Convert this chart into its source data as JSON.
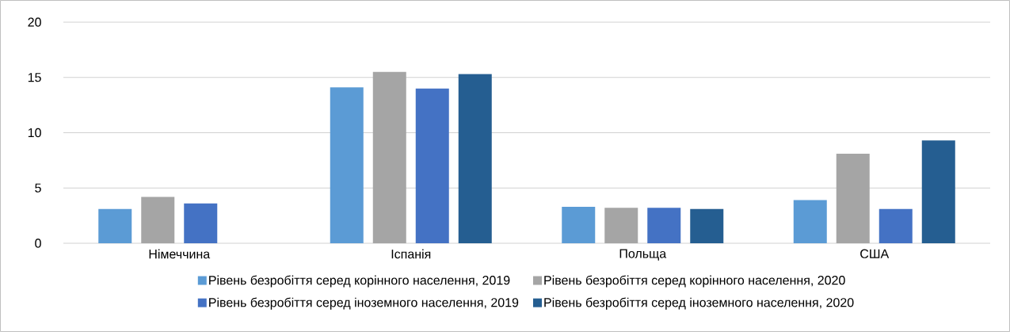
{
  "chart_data": {
    "type": "bar",
    "categories": [
      "Німеччина",
      "Іспанія",
      "Польща",
      "США"
    ],
    "series": [
      {
        "name": "Рівень безробіття серед корінного населення, 2019",
        "color": "#5b9bd5",
        "values": [
          3.1,
          14.1,
          3.3,
          3.9
        ]
      },
      {
        "name": "Рівень безробіття серед корінного населення, 2020",
        "color": "#a5a5a5",
        "values": [
          4.2,
          15.5,
          3.2,
          8.1
        ]
      },
      {
        "name": "Рівень безробіття серед іноземного населення, 2019",
        "color": "#4472c4",
        "values": [
          3.6,
          14.0,
          3.2,
          3.1
        ]
      },
      {
        "name": "Рівень безробіття серед іноземного населення, 2020",
        "color": "#255e91",
        "values": [
          null,
          15.3,
          3.1,
          9.3
        ]
      }
    ],
    "ylim": [
      0,
      20
    ],
    "yticks": [
      0,
      5,
      10,
      15,
      20
    ],
    "grid": "y",
    "legend": "bottom"
  }
}
